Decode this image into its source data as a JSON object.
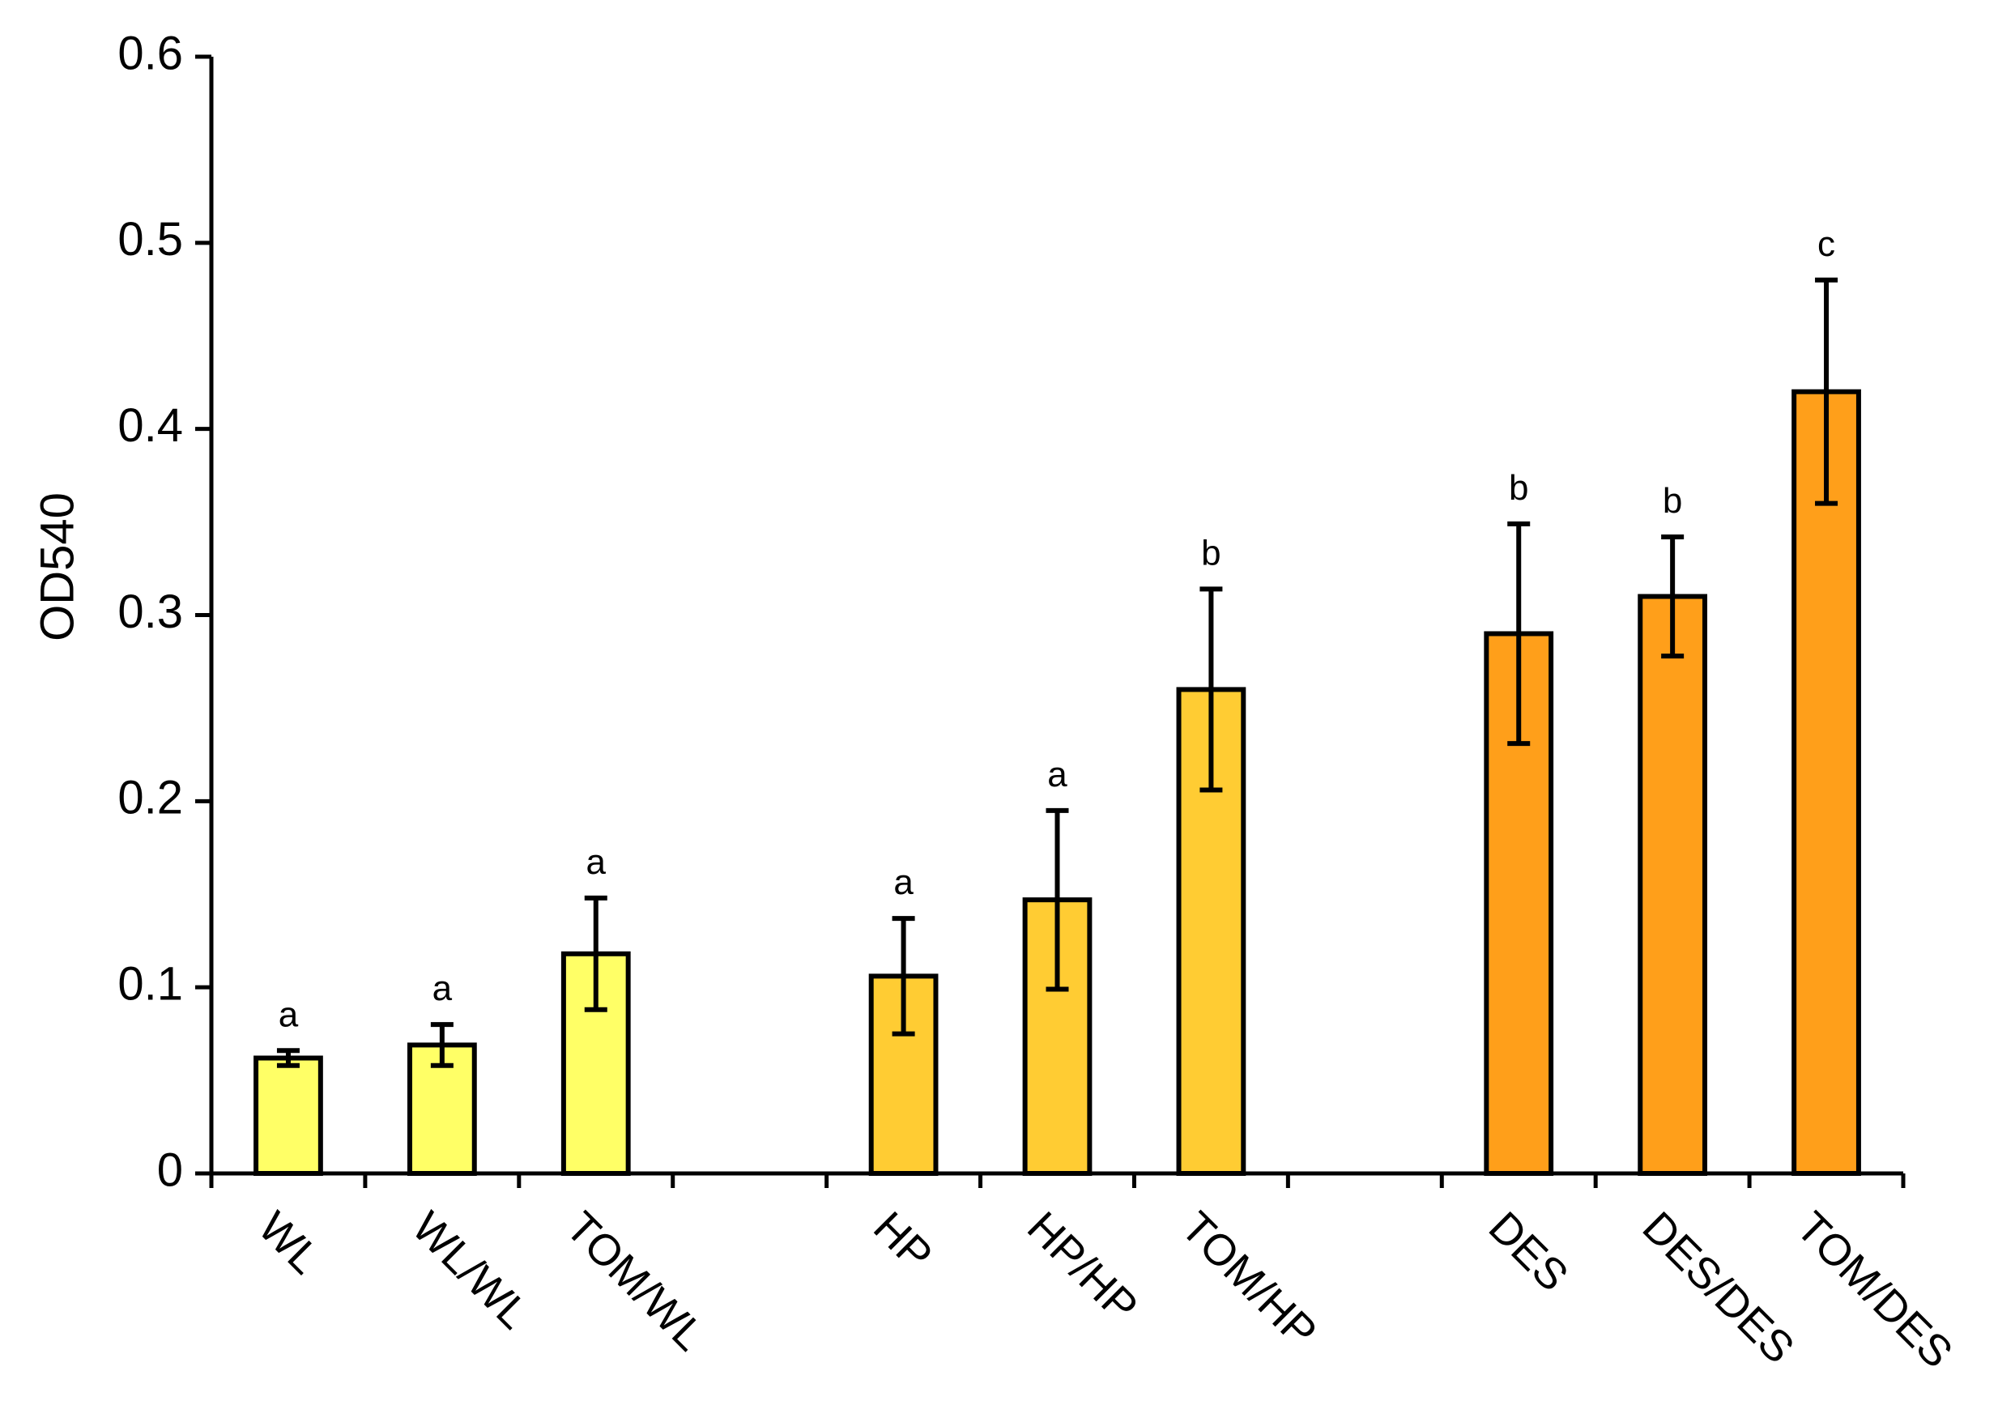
{
  "chart_data": {
    "type": "bar",
    "ylabel": "OD540",
    "ylim": [
      0,
      0.6
    ],
    "yticks": [
      0,
      0.1,
      0.2,
      0.3,
      0.4,
      0.5,
      0.6
    ],
    "ytick_labels": [
      "0",
      "0.1",
      "0.2",
      "0.3",
      "0.4",
      "0.5",
      "0.6"
    ],
    "grid": false,
    "legend": "none",
    "slots": 11,
    "categories": [
      "WL",
      "WL/WL",
      "TOM/WL",
      "HP",
      "HP/HP",
      "TOM/HP",
      "DES",
      "DES/DES",
      "TOM/DES"
    ],
    "slot_index": [
      0,
      1,
      2,
      4,
      5,
      6,
      8,
      9,
      10
    ],
    "values": [
      0.062,
      0.069,
      0.118,
      0.106,
      0.147,
      0.26,
      0.29,
      0.31,
      0.42
    ],
    "error": [
      0.004,
      0.011,
      0.03,
      0.031,
      0.048,
      0.054,
      0.059,
      0.032,
      0.06
    ],
    "significance": [
      "a",
      "a",
      "a",
      "a",
      "a",
      "b",
      "b",
      "b",
      "c"
    ],
    "colors": [
      "#FFFF66",
      "#FFFF66",
      "#FFFF66",
      "#FFCC33",
      "#FFCC33",
      "#FFCC33",
      "#FF9F1A",
      "#FF9F1A",
      "#FF9F1A"
    ],
    "edge_color": "#000000"
  }
}
